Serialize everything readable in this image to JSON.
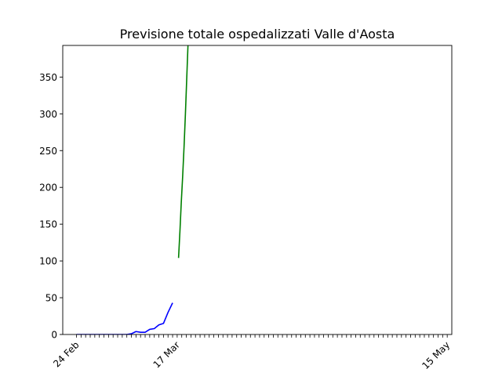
{
  "chart_data": {
    "type": "line",
    "title": "Previsione totale ospedalizzati Valle d'Aosta",
    "xlabel": "",
    "ylabel": "",
    "x_range_days": [
      -3,
      82
    ],
    "ylim": [
      0,
      393
    ],
    "y_ticks": [
      0,
      50,
      100,
      150,
      200,
      250,
      300,
      350
    ],
    "x_ticks": [
      {
        "day": 0,
        "label": "24 Feb"
      },
      {
        "day": 22,
        "label": "17 Mar"
      },
      {
        "day": 81,
        "label": "15 May"
      }
    ],
    "minor_tick_days_range": [
      0,
      81
    ],
    "grid": false,
    "legend": "none",
    "series": [
      {
        "color": "#0000ff",
        "points": [
          {
            "day": 0,
            "value": 0
          },
          {
            "day": 1,
            "value": 0
          },
          {
            "day": 2,
            "value": 0
          },
          {
            "day": 3,
            "value": 0
          },
          {
            "day": 4,
            "value": 0
          },
          {
            "day": 5,
            "value": 0
          },
          {
            "day": 6,
            "value": 0
          },
          {
            "day": 7,
            "value": 0
          },
          {
            "day": 8,
            "value": 0
          },
          {
            "day": 9,
            "value": 0
          },
          {
            "day": 10,
            "value": 0
          },
          {
            "day": 11,
            "value": 0
          },
          {
            "day": 12,
            "value": 1
          },
          {
            "day": 13,
            "value": 4
          },
          {
            "day": 14,
            "value": 3
          },
          {
            "day": 15,
            "value": 3
          },
          {
            "day": 16,
            "value": 7
          },
          {
            "day": 17,
            "value": 8
          },
          {
            "day": 18,
            "value": 13
          },
          {
            "day": 19,
            "value": 15
          },
          {
            "day": 20,
            "value": 30
          },
          {
            "day": 21,
            "value": 43
          }
        ]
      },
      {
        "color": "#008000",
        "points": [
          {
            "day": 22.3,
            "value": 104
          },
          {
            "day": 22.6,
            "value": 140
          },
          {
            "day": 22.9,
            "value": 180
          },
          {
            "day": 23.2,
            "value": 215
          },
          {
            "day": 23.5,
            "value": 255
          },
          {
            "day": 23.8,
            "value": 300
          },
          {
            "day": 24.1,
            "value": 350
          },
          {
            "day": 24.4,
            "value": 400
          }
        ]
      }
    ]
  }
}
